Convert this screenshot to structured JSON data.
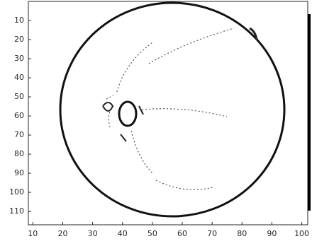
{
  "chart_data": {
    "type": "image",
    "xlim": [
      8.5,
      102
    ],
    "ylim": [
      0,
      117
    ],
    "y_reversed": true,
    "xticks": [
      10,
      20,
      30,
      40,
      50,
      60,
      70,
      80,
      90,
      100
    ],
    "yticks": [
      10,
      20,
      30,
      40,
      50,
      60,
      70,
      80,
      90,
      100,
      110
    ]
  }
}
